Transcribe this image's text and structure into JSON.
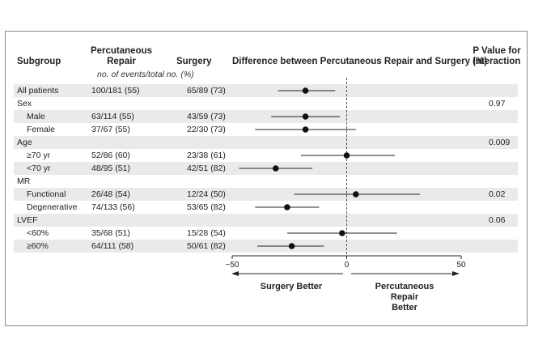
{
  "header": {
    "subgroup": "Subgroup",
    "percutaneous": [
      "Percutaneous",
      "Repair"
    ],
    "surgery": "Surgery",
    "difference": "Difference between Percutaneous Repair and Surgery (%)",
    "pvalue": [
      "P Value for",
      "Interaction"
    ],
    "subheader": "no. of events/total no. (%)"
  },
  "rows": [
    {
      "label": "All patients",
      "indent": false,
      "perc": "100/181 (55)",
      "surg": "65/89 (73)",
      "p": "",
      "shade": true
    },
    {
      "label": "Sex",
      "indent": false,
      "perc": "",
      "surg": "",
      "p": "0.97",
      "shade": false
    },
    {
      "label": "Male",
      "indent": true,
      "perc": "63/114 (55)",
      "surg": "43/59 (73)",
      "p": "",
      "shade": true
    },
    {
      "label": "Female",
      "indent": true,
      "perc": "37/67 (55)",
      "surg": "22/30 (73)",
      "p": "",
      "shade": false
    },
    {
      "label": "Age",
      "indent": false,
      "perc": "",
      "surg": "",
      "p": "0.009",
      "shade": true
    },
    {
      "label": "≥70 yr",
      "indent": true,
      "perc": "52/86 (60)",
      "surg": "23/38 (61)",
      "p": "",
      "shade": false
    },
    {
      "label": "<70 yr",
      "indent": true,
      "perc": "48/95 (51)",
      "surg": "42/51 (82)",
      "p": "",
      "shade": true
    },
    {
      "label": "MR",
      "indent": false,
      "perc": "",
      "surg": "",
      "p": "",
      "shade": false
    },
    {
      "label": "Functional",
      "indent": true,
      "perc": "26/48 (54)",
      "surg": "12/24 (50)",
      "p": "0.02",
      "shade": true
    },
    {
      "label": "Degenerative",
      "indent": true,
      "perc": "74/133 (56)",
      "surg": "53/65 (82)",
      "p": "",
      "shade": false
    },
    {
      "label": "LVEF",
      "indent": false,
      "perc": "",
      "surg": "",
      "p": "0.06",
      "shade": true
    },
    {
      "label": "<60%",
      "indent": true,
      "perc": "35/68 (51)",
      "surg": "15/28 (54)",
      "p": "",
      "shade": false
    },
    {
      "label": "≥60%",
      "indent": true,
      "perc": "64/111 (58)",
      "surg": "50/61 (82)",
      "p": "",
      "shade": true
    }
  ],
  "chart_data": {
    "type": "forest",
    "title": "Difference between Percutaneous Repair and Surgery (%)",
    "xlim": [
      -50,
      50
    ],
    "ticks": [
      -50,
      0,
      50
    ],
    "tick_labels": [
      "−50",
      "0",
      "50"
    ],
    "reference_line": 0,
    "left_label": "Surgery Better",
    "right_label": [
      "Percutaneous",
      "Repair",
      "Better"
    ],
    "points": [
      {
        "row": 0,
        "estimate": -18,
        "lo": -30,
        "hi": -5
      },
      {
        "row": 2,
        "estimate": -18,
        "lo": -33,
        "hi": -3
      },
      {
        "row": 3,
        "estimate": -18,
        "lo": -40,
        "hi": 4
      },
      {
        "row": 5,
        "estimate": 0,
        "lo": -20,
        "hi": 21
      },
      {
        "row": 6,
        "estimate": -31,
        "lo": -47,
        "hi": -15
      },
      {
        "row": 8,
        "estimate": 4,
        "lo": -23,
        "hi": 32
      },
      {
        "row": 9,
        "estimate": -26,
        "lo": -40,
        "hi": -12
      },
      {
        "row": 11,
        "estimate": -2,
        "lo": -26,
        "hi": 22
      },
      {
        "row": 12,
        "estimate": -24,
        "lo": -39,
        "hi": -10
      }
    ]
  }
}
